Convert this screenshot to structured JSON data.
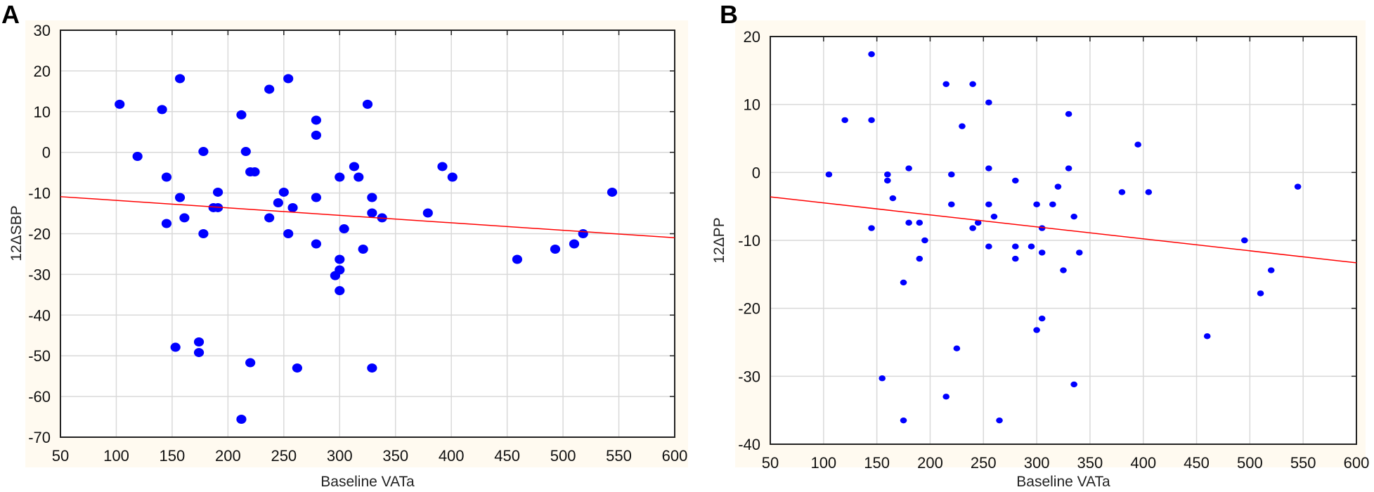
{
  "chart_data": [
    {
      "panel_label": "A",
      "type": "scatter",
      "title": "",
      "xlabel": "Baseline VATa",
      "ylabel": "12ΔSBP",
      "xlim": [
        50,
        600
      ],
      "ylim": [
        -70,
        30
      ],
      "xticks": [
        50,
        100,
        150,
        200,
        250,
        300,
        350,
        400,
        450,
        500,
        550,
        600
      ],
      "yticks": [
        30,
        20,
        10,
        0,
        -10,
        -20,
        -30,
        -40,
        -50,
        -60,
        -70
      ],
      "grid": true,
      "marker_color": "#0000ff",
      "fit_color": "#ff0000",
      "fit_line": [
        [
          50,
          -10.9
        ],
        [
          600,
          -21.0
        ]
      ],
      "points": [
        [
          103,
          11.8
        ],
        [
          119,
          -1
        ],
        [
          141,
          10.5
        ],
        [
          145,
          -6.1
        ],
        [
          145,
          -17.5
        ],
        [
          157,
          18.1
        ],
        [
          157,
          -11.1
        ],
        [
          161,
          -16.1
        ],
        [
          153,
          -47.9
        ],
        [
          174,
          -46.6
        ],
        [
          174,
          -49.2
        ],
        [
          178,
          0.2
        ],
        [
          178,
          -20
        ],
        [
          187,
          -13.6
        ],
        [
          191,
          -9.8
        ],
        [
          191,
          -13.6
        ],
        [
          212,
          9.2
        ],
        [
          212,
          -65.6
        ],
        [
          216,
          0.2
        ],
        [
          220,
          -4.8
        ],
        [
          224,
          -4.8
        ],
        [
          220,
          -51.7
        ],
        [
          237,
          15.5
        ],
        [
          237,
          -16.1
        ],
        [
          245,
          -12.4
        ],
        [
          250,
          -9.8
        ],
        [
          254,
          18.1
        ],
        [
          254,
          -20
        ],
        [
          258,
          -13.6
        ],
        [
          262,
          -53
        ],
        [
          279,
          7.9
        ],
        [
          279,
          4.2
        ],
        [
          279,
          -11.1
        ],
        [
          279,
          -22.5
        ],
        [
          296,
          -30.3
        ],
        [
          300,
          -6.1
        ],
        [
          300,
          -26.3
        ],
        [
          300,
          -28.9
        ],
        [
          300,
          -34
        ],
        [
          304,
          -18.8
        ],
        [
          313,
          -3.5
        ],
        [
          317,
          -6.1
        ],
        [
          321,
          -23.8
        ],
        [
          325,
          11.8
        ],
        [
          329,
          -11.1
        ],
        [
          329,
          -14.9
        ],
        [
          329,
          -53
        ],
        [
          338,
          -16.1
        ],
        [
          379,
          -14.9
        ],
        [
          392,
          -3.5
        ],
        [
          401,
          -6.1
        ],
        [
          459,
          -26.3
        ],
        [
          493,
          -23.8
        ],
        [
          510,
          -22.5
        ],
        [
          518,
          -20
        ],
        [
          544,
          -9.8
        ]
      ]
    },
    {
      "panel_label": "B",
      "type": "scatter",
      "title": "",
      "xlabel": "Baseline VATa",
      "ylabel": "12ΔPP",
      "xlim": [
        50,
        600
      ],
      "ylim": [
        -40,
        20
      ],
      "xticks": [
        50,
        100,
        150,
        200,
        250,
        300,
        350,
        400,
        450,
        500,
        550,
        600
      ],
      "yticks": [
        20,
        10,
        0,
        -10,
        -20,
        -30,
        -40
      ],
      "grid": true,
      "marker_color": "#0000ff",
      "fit_color": "#ff0000",
      "fit_line": [
        [
          50,
          -3.6
        ],
        [
          600,
          -13.3
        ]
      ],
      "points": [
        [
          105,
          -0.3
        ],
        [
          120,
          7.7
        ],
        [
          145,
          17.4
        ],
        [
          145,
          7.7
        ],
        [
          145,
          -8.2
        ],
        [
          155,
          -30.3
        ],
        [
          160,
          -0.3
        ],
        [
          160,
          -1.2
        ],
        [
          165,
          -3.8
        ],
        [
          175,
          -36.5
        ],
        [
          175,
          -16.2
        ],
        [
          180,
          0.6
        ],
        [
          180,
          -7.4
        ],
        [
          190,
          -7.4
        ],
        [
          190,
          -12.7
        ],
        [
          195,
          -10
        ],
        [
          215,
          13
        ],
        [
          215,
          -33
        ],
        [
          220,
          -0.3
        ],
        [
          220,
          -4.7
        ],
        [
          225,
          -25.9
        ],
        [
          230,
          6.8
        ],
        [
          240,
          13
        ],
        [
          240,
          -8.2
        ],
        [
          245,
          -7.4
        ],
        [
          255,
          10.3
        ],
        [
          255,
          0.6
        ],
        [
          255,
          -4.7
        ],
        [
          255,
          -10.9
        ],
        [
          260,
          -6.5
        ],
        [
          265,
          -36.5
        ],
        [
          280,
          -1.2
        ],
        [
          280,
          -10.9
        ],
        [
          280,
          -12.7
        ],
        [
          295,
          -10.9
        ],
        [
          300,
          -4.7
        ],
        [
          300,
          -23.2
        ],
        [
          305,
          -8.2
        ],
        [
          305,
          -11.8
        ],
        [
          305,
          -21.5
        ],
        [
          315,
          -4.7
        ],
        [
          320,
          -2.1
        ],
        [
          325,
          -14.4
        ],
        [
          330,
          8.6
        ],
        [
          330,
          0.6
        ],
        [
          335,
          -6.5
        ],
        [
          335,
          -31.2
        ],
        [
          340,
          -11.8
        ],
        [
          380,
          -2.9
        ],
        [
          395,
          4.1
        ],
        [
          405,
          -2.9
        ],
        [
          460,
          -24.1
        ],
        [
          495,
          -10
        ],
        [
          510,
          -17.8
        ],
        [
          520,
          -14.4
        ],
        [
          545,
          -2.1
        ]
      ]
    }
  ]
}
